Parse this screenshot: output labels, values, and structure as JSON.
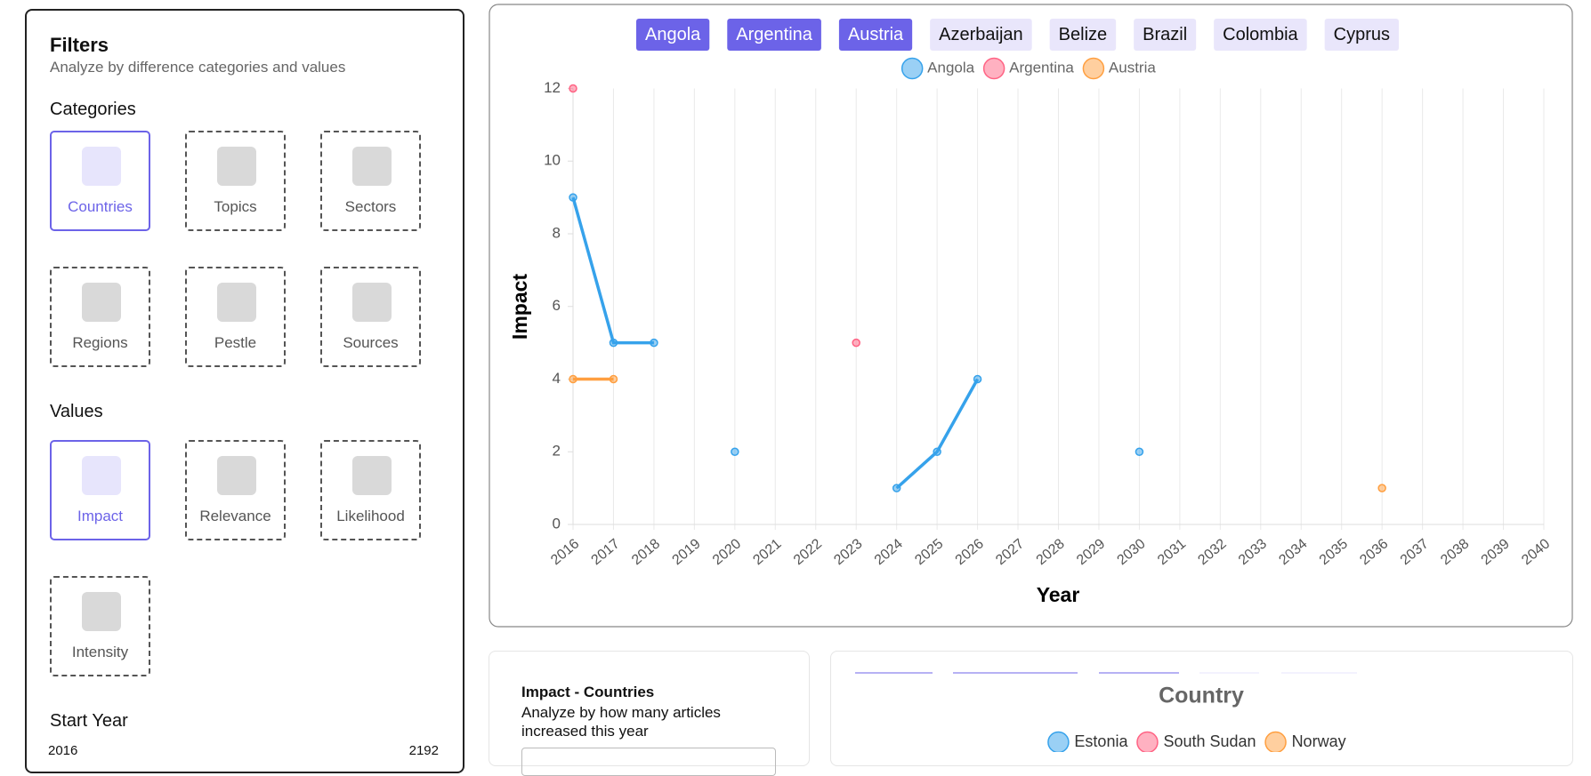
{
  "filters": {
    "title": "Filters",
    "subtitle": "Analyze by difference categories and values",
    "categories_label": "Categories",
    "categories": [
      {
        "label": "Countries",
        "selected": true
      },
      {
        "label": "Topics",
        "selected": false
      },
      {
        "label": "Sectors",
        "selected": false
      },
      {
        "label": "Regions",
        "selected": false
      },
      {
        "label": "Pestle",
        "selected": false
      },
      {
        "label": "Sources",
        "selected": false
      }
    ],
    "values_label": "Values",
    "values": [
      {
        "label": "Impact",
        "selected": true
      },
      {
        "label": "Relevance",
        "selected": false
      },
      {
        "label": "Likelihood",
        "selected": false
      },
      {
        "label": "Intensity",
        "selected": false
      }
    ],
    "start_year": {
      "label": "Start Year",
      "min": 2016,
      "max": 2192
    }
  },
  "chart_data": {
    "type": "line",
    "toggles": [
      {
        "label": "Angola",
        "active": true
      },
      {
        "label": "Argentina",
        "active": true
      },
      {
        "label": "Austria",
        "active": true
      },
      {
        "label": "Azerbaijan",
        "active": false
      },
      {
        "label": "Belize",
        "active": false
      },
      {
        "label": "Brazil",
        "active": false
      },
      {
        "label": "Colombia",
        "active": false
      },
      {
        "label": "Cyprus",
        "active": false
      }
    ],
    "x": [
      2016,
      2017,
      2018,
      2019,
      2020,
      2021,
      2022,
      2023,
      2024,
      2025,
      2026,
      2027,
      2028,
      2029,
      2030,
      2031,
      2032,
      2033,
      2034,
      2035,
      2036,
      2037,
      2038,
      2039,
      2040
    ],
    "xlim": [
      2016,
      2040
    ],
    "xticks": [
      2016,
      2017,
      2018,
      2019,
      2020,
      2021,
      2022,
      2023,
      2024,
      2025,
      2026,
      2027,
      2028,
      2029,
      2030,
      2031,
      2032,
      2033,
      2034,
      2035,
      2036,
      2037,
      2038,
      2039,
      2040
    ],
    "ylim": [
      0,
      12
    ],
    "yticks": [
      0,
      2,
      4,
      6,
      8,
      10,
      12
    ],
    "xlabel": "Year",
    "ylabel": "Impact",
    "grid_x": true,
    "series": [
      {
        "name": "Angola",
        "color": "#36a2eb",
        "values": [
          9,
          5,
          5,
          null,
          2,
          null,
          null,
          null,
          1,
          2,
          4,
          null,
          null,
          null,
          2,
          null,
          null,
          null,
          null,
          null,
          null,
          null,
          null,
          null,
          null
        ]
      },
      {
        "name": "Argentina",
        "color": "#ff6384",
        "values": [
          12,
          null,
          null,
          null,
          null,
          null,
          null,
          5,
          null,
          null,
          null,
          null,
          null,
          null,
          null,
          null,
          null,
          null,
          null,
          null,
          null,
          null,
          null,
          null,
          null
        ]
      },
      {
        "name": "Austria",
        "color": "#ff9f40",
        "values": [
          4,
          4,
          null,
          null,
          null,
          null,
          null,
          null,
          null,
          null,
          null,
          null,
          null,
          null,
          null,
          null,
          null,
          null,
          null,
          null,
          1,
          null,
          null,
          null,
          null
        ]
      }
    ]
  },
  "cards": {
    "impact_card": {
      "title": "Impact - Countries",
      "subtitle": "Analyze by how many articles increased this year"
    },
    "country_chart": {
      "title": "Country",
      "legend": [
        {
          "name": "Estonia",
          "color": "#36a2eb"
        },
        {
          "name": "South Sudan",
          "color": "#ff6384"
        },
        {
          "name": "Norway",
          "color": "#ff9f40"
        }
      ]
    }
  }
}
